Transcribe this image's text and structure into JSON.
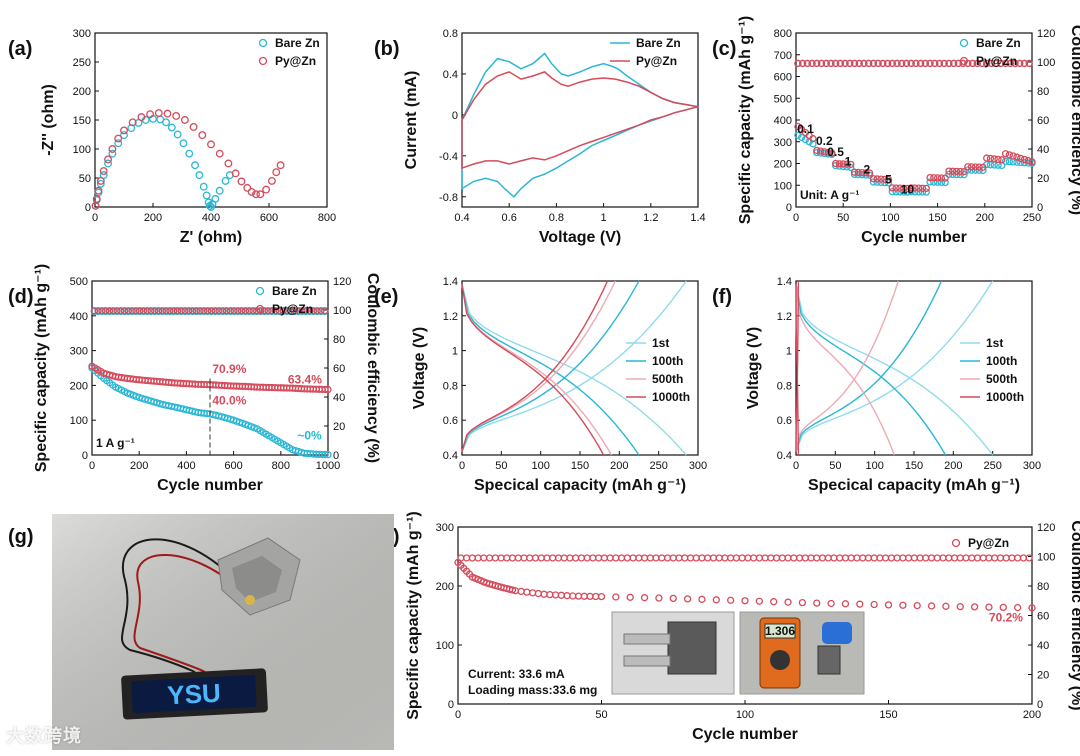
{
  "colors": {
    "bare": "#2ab7d4",
    "py": "#d64a5a",
    "anno_red": "#d64a5a",
    "anno_blue": "#2ab7d4"
  },
  "watermark": "大数跨境",
  "chart_data": [
    {
      "id": "a",
      "type": "scatter",
      "panel_label": "(a)",
      "xlabel": "Z' (ohm)",
      "ylabel": "-Z'' (ohm)",
      "xlim": [
        0,
        800
      ],
      "ylim": [
        0,
        300
      ],
      "xticks": [
        0,
        200,
        400,
        600,
        800
      ],
      "yticks": [
        0,
        50,
        100,
        150,
        200,
        250,
        300
      ],
      "legend": [
        "Bare Zn",
        "Py@Zn"
      ],
      "series": [
        {
          "name": "Bare Zn",
          "x": [
            2,
            6,
            12,
            20,
            30,
            45,
            60,
            80,
            100,
            125,
            150,
            175,
            200,
            225,
            245,
            265,
            285,
            305,
            325,
            345,
            360,
            375,
            385,
            392,
            396,
            400,
            405,
            415,
            430,
            450,
            465
          ],
          "y": [
            2,
            12,
            25,
            40,
            55,
            75,
            92,
            110,
            124,
            136,
            145,
            150,
            152,
            151,
            146,
            137,
            125,
            110,
            92,
            72,
            55,
            35,
            20,
            8,
            2,
            0,
            5,
            14,
            28,
            45,
            55
          ]
        },
        {
          "name": "Py@Zn",
          "x": [
            2,
            6,
            12,
            20,
            30,
            45,
            60,
            80,
            100,
            130,
            160,
            190,
            220,
            250,
            280,
            310,
            340,
            370,
            400,
            430,
            460,
            485,
            505,
            525,
            540,
            555,
            570,
            590,
            610,
            625,
            640
          ],
          "y": [
            2,
            14,
            28,
            45,
            62,
            82,
            100,
            118,
            132,
            146,
            155,
            160,
            162,
            161,
            157,
            150,
            138,
            124,
            108,
            92,
            75,
            58,
            44,
            33,
            26,
            22,
            22,
            30,
            45,
            60,
            72
          ]
        }
      ]
    },
    {
      "id": "b",
      "type": "line",
      "panel_label": "(b)",
      "xlabel": "Voltage (V)",
      "ylabel": "Current (mA)",
      "xlim": [
        0.4,
        1.4
      ],
      "ylim": [
        -0.9,
        0.8
      ],
      "xticks": [
        0.4,
        0.6,
        0.8,
        1.0,
        1.2,
        1.4
      ],
      "yticks": [
        -0.8,
        -0.4,
        0.0,
        0.4,
        0.8
      ],
      "legend": [
        "Bare Zn",
        "Py@Zn"
      ],
      "series": [
        {
          "name": "Bare Zn",
          "x": [
            0.4,
            0.45,
            0.5,
            0.55,
            0.6,
            0.65,
            0.7,
            0.75,
            0.78,
            0.82,
            0.85,
            0.9,
            0.95,
            1.0,
            1.03,
            1.06,
            1.1,
            1.15,
            1.2,
            1.25,
            1.3,
            1.35,
            1.4,
            1.35,
            1.3,
            1.25,
            1.2,
            1.15,
            1.1,
            1.05,
            1.0,
            0.95,
            0.9,
            0.85,
            0.8,
            0.75,
            0.7,
            0.65,
            0.62,
            0.58,
            0.55,
            0.5,
            0.45,
            0.4
          ],
          "y": [
            -0.05,
            0.2,
            0.42,
            0.55,
            0.52,
            0.45,
            0.5,
            0.6,
            0.5,
            0.4,
            0.38,
            0.42,
            0.47,
            0.5,
            0.48,
            0.45,
            0.38,
            0.3,
            0.22,
            0.16,
            0.12,
            0.1,
            0.08,
            0.05,
            0.02,
            -0.02,
            -0.06,
            -0.1,
            -0.15,
            -0.2,
            -0.25,
            -0.3,
            -0.38,
            -0.45,
            -0.52,
            -0.58,
            -0.62,
            -0.72,
            -0.8,
            -0.72,
            -0.65,
            -0.62,
            -0.65,
            -0.72
          ]
        },
        {
          "name": "Py@Zn",
          "x": [
            0.4,
            0.45,
            0.5,
            0.55,
            0.6,
            0.65,
            0.7,
            0.75,
            0.78,
            0.82,
            0.85,
            0.9,
            0.95,
            1.0,
            1.05,
            1.1,
            1.15,
            1.2,
            1.25,
            1.3,
            1.35,
            1.4,
            1.35,
            1.3,
            1.25,
            1.2,
            1.15,
            1.1,
            1.05,
            1.0,
            0.95,
            0.9,
            0.85,
            0.8,
            0.75,
            0.7,
            0.65,
            0.6,
            0.55,
            0.5,
            0.45,
            0.4
          ],
          "y": [
            -0.05,
            0.15,
            0.3,
            0.38,
            0.42,
            0.35,
            0.38,
            0.42,
            0.36,
            0.3,
            0.28,
            0.32,
            0.35,
            0.36,
            0.35,
            0.32,
            0.28,
            0.22,
            0.16,
            0.12,
            0.1,
            0.08,
            0.05,
            0.02,
            -0.02,
            -0.05,
            -0.1,
            -0.14,
            -0.18,
            -0.22,
            -0.26,
            -0.3,
            -0.35,
            -0.4,
            -0.44,
            -0.42,
            -0.45,
            -0.48,
            -0.45,
            -0.45,
            -0.48,
            -0.52
          ]
        }
      ]
    },
    {
      "id": "c",
      "type": "scatter",
      "panel_label": "(c)",
      "xlabel": "Cycle number",
      "ylabel": "Specific capacity (mAh g⁻¹)",
      "y2label": "Coulombic efficiency (%)",
      "xlim": [
        0,
        250
      ],
      "ylim": [
        0,
        800
      ],
      "y2lim": [
        0,
        120
      ],
      "xticks": [
        0,
        50,
        100,
        150,
        200,
        250
      ],
      "yticks": [
        0,
        100,
        200,
        300,
        400,
        500,
        600,
        700,
        800
      ],
      "y2ticks": [
        0,
        20,
        40,
        60,
        80,
        100,
        120
      ],
      "legend": [
        "Bare Zn",
        "Py@Zn"
      ],
      "annotations": [
        "0.1",
        "0.2",
        "0.5",
        "1",
        "2",
        "5",
        "10"
      ],
      "unit_text": "Unit: A g⁻¹",
      "series": [
        {
          "name": "Bare Zn",
          "segments": [
            [
              0,
              20,
              330,
              280
            ],
            [
              20,
              40,
              250,
              240
            ],
            [
              40,
              60,
              190,
              180
            ],
            [
              60,
              80,
              150,
              145
            ],
            [
              80,
              100,
              115,
              110
            ],
            [
              100,
              120,
              70,
              68
            ],
            [
              120,
              140,
              70,
              68
            ],
            [
              140,
              160,
              115,
              112
            ],
            [
              160,
              180,
              150,
              148
            ],
            [
              180,
              200,
              170,
              168
            ],
            [
              200,
              220,
              195,
              190
            ],
            [
              220,
              250,
              210,
              200
            ]
          ]
        },
        {
          "name": "Py@Zn",
          "segments": [
            [
              0,
              20,
              370,
              300
            ],
            [
              20,
              40,
              260,
              245
            ],
            [
              40,
              60,
              200,
              195
            ],
            [
              60,
              80,
              160,
              155
            ],
            [
              80,
              100,
              130,
              125
            ],
            [
              100,
              120,
              88,
              85
            ],
            [
              120,
              140,
              88,
              85
            ],
            [
              140,
              160,
              135,
              132
            ],
            [
              160,
              180,
              165,
              162
            ],
            [
              180,
              200,
              185,
              182
            ],
            [
              200,
              220,
              225,
              215
            ],
            [
              220,
              250,
              245,
              205
            ]
          ]
        },
        {
          "name": "Bare Zn CE",
          "ce": 99
        },
        {
          "name": "Py@Zn CE",
          "ce": 99
        }
      ]
    },
    {
      "id": "d",
      "type": "scatter",
      "panel_label": "(d)",
      "xlabel": "Cycle number",
      "ylabel": "Specific capacity (mAh g⁻¹)",
      "y2label": "Coulombic efficiency (%)",
      "xlim": [
        0,
        1000
      ],
      "ylim": [
        0,
        500
      ],
      "y2lim": [
        0,
        120
      ],
      "xticks": [
        0,
        200,
        400,
        600,
        800,
        1000
      ],
      "yticks": [
        0,
        100,
        200,
        300,
        400,
        500
      ],
      "y2ticks": [
        0,
        20,
        40,
        60,
        80,
        100,
        120
      ],
      "legend": [
        "Bare Zn",
        "Py@Zn"
      ],
      "annotations": {
        "py_500": "70.9%",
        "py_1000": "63.4%",
        "bare_500": "40.0%",
        "bare_1000": "~0%",
        "rate": "1 A g⁻¹"
      },
      "series": [
        {
          "name": "Bare Zn",
          "x": [
            0,
            50,
            100,
            150,
            200,
            250,
            300,
            350,
            400,
            450,
            500,
            550,
            600,
            650,
            700,
            750,
            800,
            850,
            900,
            950,
            1000
          ],
          "y": [
            250,
            220,
            195,
            178,
            165,
            155,
            145,
            138,
            130,
            122,
            118,
            110,
            100,
            88,
            75,
            55,
            35,
            15,
            5,
            2,
            1
          ]
        },
        {
          "name": "Py@Zn",
          "x": [
            0,
            50,
            100,
            150,
            200,
            250,
            300,
            350,
            400,
            450,
            500,
            550,
            600,
            650,
            700,
            750,
            800,
            850,
            900,
            950,
            1000
          ],
          "y": [
            255,
            235,
            225,
            220,
            216,
            213,
            210,
            207,
            205,
            203,
            202,
            200,
            198,
            197,
            195,
            194,
            193,
            192,
            190,
            189,
            188
          ]
        },
        {
          "name": "Bare Zn CE",
          "ce": 99
        },
        {
          "name": "Py@Zn CE",
          "ce": 99.5
        }
      ]
    },
    {
      "id": "e",
      "type": "line",
      "panel_label": "(e)",
      "xlabel": "Specical capacity (mAh g⁻¹)",
      "ylabel": "Voltage (V)",
      "xlim": [
        0,
        300
      ],
      "ylim": [
        0.4,
        1.4
      ],
      "xticks": [
        0,
        50,
        100,
        150,
        200,
        250,
        300
      ],
      "yticks": [
        0.4,
        0.6,
        0.8,
        1.0,
        1.2,
        1.4
      ],
      "legend": [
        "1st",
        "100th",
        "500th",
        "1000th"
      ],
      "series": [
        {
          "name": "1st",
          "color": "#8fdcec",
          "discharge_end": 285,
          "charge_end": 285
        },
        {
          "name": "100th",
          "color": "#2ab7d4",
          "discharge_end": 225,
          "charge_end": 225
        },
        {
          "name": "500th",
          "color": "#eeaab2",
          "discharge_end": 190,
          "charge_end": 195
        },
        {
          "name": "1000th",
          "color": "#d64a5a",
          "discharge_end": 180,
          "charge_end": 185
        }
      ]
    },
    {
      "id": "f",
      "type": "line",
      "panel_label": "(f)",
      "xlabel": "Specical capacity (mAh g⁻¹)",
      "ylabel": "Voltage (V)",
      "xlim": [
        0,
        300
      ],
      "ylim": [
        0.4,
        1.4
      ],
      "xticks": [
        0,
        50,
        100,
        150,
        200,
        250,
        300
      ],
      "yticks": [
        0.4,
        0.6,
        0.8,
        1.0,
        1.2,
        1.4
      ],
      "legend": [
        "1st",
        "100th",
        "500th",
        "1000th"
      ],
      "series": [
        {
          "name": "1st",
          "color": "#8fdcec",
          "discharge_end": 250,
          "charge_end": 250
        },
        {
          "name": "100th",
          "color": "#2ab7d4",
          "discharge_end": 190,
          "charge_end": 185
        },
        {
          "name": "500th",
          "color": "#eeaab2",
          "discharge_end": 125,
          "charge_end": 130
        },
        {
          "name": "1000th",
          "color": "#d64a5a",
          "discharge_end": 3,
          "charge_end": 3
        }
      ]
    },
    {
      "id": "h",
      "type": "scatter",
      "panel_label": "(h)",
      "xlabel": "Cycle number",
      "ylabel": "Specific capacity (mAh g⁻¹)",
      "y2label": "Coulombic efficiency (%)",
      "xlim": [
        0,
        200
      ],
      "ylim": [
        0,
        300
      ],
      "y2lim": [
        0,
        120
      ],
      "xticks": [
        0,
        50,
        100,
        150,
        200
      ],
      "yticks": [
        0,
        100,
        200,
        300
      ],
      "y2ticks": [
        0,
        20,
        40,
        60,
        80,
        100,
        120
      ],
      "legend": [
        "Py@Zn"
      ],
      "annotations": {
        "retention": "70.2%",
        "current": "Current: 33.6 mA",
        "mass": "Loading mass:33.6 mg"
      },
      "series": [
        {
          "name": "Py@Zn",
          "x": [
            0,
            5,
            10,
            15,
            20,
            30,
            40,
            50,
            75,
            100,
            125,
            150,
            175,
            200
          ],
          "y": [
            240,
            215,
            205,
            198,
            192,
            186,
            183,
            182,
            179,
            175,
            171,
            168,
            165,
            163
          ]
        },
        {
          "name": "Py@Zn CE",
          "ce": 99
        }
      ]
    }
  ],
  "panel_g": {
    "label": "(g)",
    "display_text": "YSU"
  },
  "panel_h_inset": {
    "meter_reading": "1.306"
  }
}
